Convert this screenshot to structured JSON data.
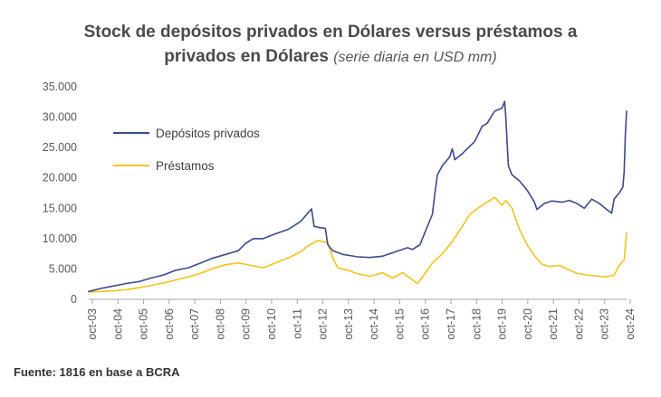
{
  "title_main": "Stock de depósitos privados en Dólares versus préstamos a privados en Dólares",
  "title_line1": "Stock de depósitos privados en Dólares versus préstamos a",
  "title_line2": "privados en Dólares",
  "subtitle": "(serie diaria en USD mm)",
  "source": "Fuente: 1816 en base a BCRA",
  "colors": {
    "depositos": "#3b4a8c",
    "prestamos": "#f7c21b",
    "axis": "#a6a6a6"
  },
  "chart_data": {
    "type": "line",
    "ylim": [
      0,
      35000
    ],
    "xlim": [
      2003.0,
      2024.6
    ],
    "yticks": [
      0,
      5000,
      10000,
      15000,
      20000,
      25000,
      30000,
      35000
    ],
    "ytick_labels": [
      "0",
      "5.000",
      "10.000",
      "15.000",
      "20.000",
      "25.000",
      "30.000",
      "35.000"
    ],
    "xtick_labels": [
      "oct-03",
      "oct-04",
      "oct-05",
      "oct-06",
      "oct-07",
      "oct-08",
      "oct-09",
      "oct-10",
      "oct-11",
      "oct-12",
      "oct-13",
      "oct-14",
      "oct-15",
      "oct-16",
      "oct-17",
      "oct-18",
      "oct-19",
      "oct-20",
      "oct-21",
      "oct-22",
      "oct-23",
      "oct-24"
    ],
    "legend_placement": "upper-left",
    "series": [
      {
        "name": "Depósitos privados",
        "points": [
          [
            2003.0,
            1300
          ],
          [
            2003.5,
            1800
          ],
          [
            2004.0,
            2200
          ],
          [
            2004.5,
            2600
          ],
          [
            2005.0,
            2900
          ],
          [
            2005.5,
            3500
          ],
          [
            2006.0,
            4000
          ],
          [
            2006.5,
            4800
          ],
          [
            2007.0,
            5200
          ],
          [
            2007.5,
            6000
          ],
          [
            2008.0,
            6800
          ],
          [
            2008.5,
            7400
          ],
          [
            2009.0,
            8000
          ],
          [
            2009.3,
            9200
          ],
          [
            2009.6,
            10000
          ],
          [
            2010.0,
            10000
          ],
          [
            2010.5,
            10800
          ],
          [
            2011.0,
            11500
          ],
          [
            2011.5,
            12800
          ],
          [
            2011.8,
            14200
          ],
          [
            2011.95,
            14900
          ],
          [
            2012.05,
            12000
          ],
          [
            2012.3,
            11800
          ],
          [
            2012.5,
            11700
          ],
          [
            2012.6,
            9000
          ],
          [
            2012.8,
            8000
          ],
          [
            2013.2,
            7400
          ],
          [
            2013.8,
            7000
          ],
          [
            2014.3,
            6900
          ],
          [
            2014.8,
            7100
          ],
          [
            2015.3,
            7800
          ],
          [
            2015.8,
            8500
          ],
          [
            2016.0,
            8200
          ],
          [
            2016.3,
            9000
          ],
          [
            2016.6,
            12000
          ],
          [
            2016.8,
            14000
          ],
          [
            2016.9,
            17500
          ],
          [
            2017.0,
            20500
          ],
          [
            2017.2,
            22000
          ],
          [
            2017.5,
            23500
          ],
          [
            2017.6,
            24800
          ],
          [
            2017.7,
            23000
          ],
          [
            2018.0,
            24000
          ],
          [
            2018.5,
            26000
          ],
          [
            2018.8,
            28500
          ],
          [
            2019.0,
            29000
          ],
          [
            2019.3,
            31000
          ],
          [
            2019.6,
            31500
          ],
          [
            2019.7,
            32600
          ],
          [
            2019.75,
            30000
          ],
          [
            2019.85,
            22000
          ],
          [
            2020.0,
            20500
          ],
          [
            2020.3,
            19500
          ],
          [
            2020.6,
            18000
          ],
          [
            2020.9,
            16000
          ],
          [
            2021.0,
            14800
          ],
          [
            2021.3,
            15800
          ],
          [
            2021.6,
            16200
          ],
          [
            2022.0,
            16000
          ],
          [
            2022.3,
            16300
          ],
          [
            2022.6,
            15800
          ],
          [
            2022.9,
            15000
          ],
          [
            2023.2,
            16500
          ],
          [
            2023.5,
            15800
          ],
          [
            2023.8,
            14800
          ],
          [
            2024.0,
            14200
          ],
          [
            2024.1,
            16500
          ],
          [
            2024.3,
            17500
          ],
          [
            2024.45,
            18500
          ],
          [
            2024.5,
            21000
          ],
          [
            2024.55,
            27000
          ],
          [
            2024.6,
            31000
          ]
        ]
      },
      {
        "name": "Préstamos",
        "points": [
          [
            2003.0,
            1200
          ],
          [
            2003.5,
            1300
          ],
          [
            2004.0,
            1400
          ],
          [
            2004.5,
            1600
          ],
          [
            2005.0,
            1900
          ],
          [
            2005.5,
            2300
          ],
          [
            2006.0,
            2700
          ],
          [
            2006.5,
            3200
          ],
          [
            2007.0,
            3700
          ],
          [
            2007.5,
            4300
          ],
          [
            2008.0,
            5100
          ],
          [
            2008.5,
            5700
          ],
          [
            2009.0,
            6000
          ],
          [
            2009.5,
            5600
          ],
          [
            2010.0,
            5200
          ],
          [
            2010.5,
            6000
          ],
          [
            2011.0,
            6800
          ],
          [
            2011.5,
            7800
          ],
          [
            2011.8,
            8800
          ],
          [
            2012.2,
            9700
          ],
          [
            2012.6,
            9300
          ],
          [
            2012.8,
            6800
          ],
          [
            2013.0,
            5200
          ],
          [
            2013.4,
            4800
          ],
          [
            2013.8,
            4200
          ],
          [
            2014.3,
            3800
          ],
          [
            2014.8,
            4400
          ],
          [
            2015.2,
            3500
          ],
          [
            2015.6,
            4400
          ],
          [
            2016.0,
            3200
          ],
          [
            2016.2,
            2600
          ],
          [
            2016.5,
            4200
          ],
          [
            2016.8,
            6000
          ],
          [
            2017.2,
            7500
          ],
          [
            2017.6,
            9500
          ],
          [
            2018.0,
            12000
          ],
          [
            2018.3,
            14000
          ],
          [
            2018.7,
            15200
          ],
          [
            2019.0,
            16000
          ],
          [
            2019.3,
            16800
          ],
          [
            2019.6,
            15500
          ],
          [
            2019.75,
            16300
          ],
          [
            2020.0,
            15000
          ],
          [
            2020.3,
            11500
          ],
          [
            2020.6,
            9000
          ],
          [
            2020.9,
            7200
          ],
          [
            2021.2,
            5800
          ],
          [
            2021.5,
            5400
          ],
          [
            2021.9,
            5600
          ],
          [
            2022.2,
            5000
          ],
          [
            2022.6,
            4300
          ],
          [
            2023.0,
            4000
          ],
          [
            2023.5,
            3800
          ],
          [
            2023.8,
            3700
          ],
          [
            2024.1,
            4000
          ],
          [
            2024.3,
            5600
          ],
          [
            2024.5,
            6500
          ],
          [
            2024.6,
            11000
          ]
        ]
      }
    ]
  }
}
